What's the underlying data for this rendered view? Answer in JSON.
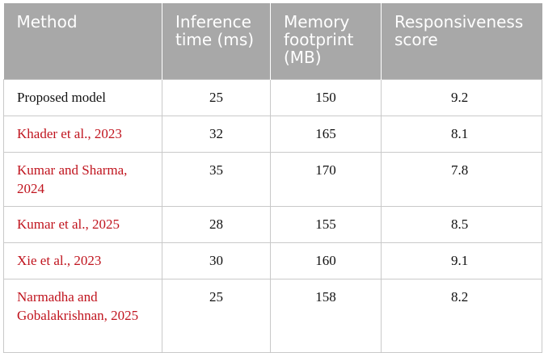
{
  "table": {
    "headers": [
      "Method",
      "Inference time (ms)",
      "Memory footprint (MB)",
      "Responsiveness score"
    ],
    "rows": [
      {
        "method": "Proposed model",
        "inference_ms": "25",
        "memory_mb": "150",
        "score": "9.2",
        "is_reference": false
      },
      {
        "method": "Khader et al., 2023",
        "inference_ms": "32",
        "memory_mb": "165",
        "score": "8.1",
        "is_reference": true
      },
      {
        "method": "Kumar and Sharma, 2024",
        "inference_ms": "35",
        "memory_mb": "170",
        "score": "7.8",
        "is_reference": true
      },
      {
        "method": "Kumar et al., 2025",
        "inference_ms": "28",
        "memory_mb": "155",
        "score": "8.5",
        "is_reference": true
      },
      {
        "method": "Xie et al., 2023",
        "inference_ms": "30",
        "memory_mb": "160",
        "score": "9.1",
        "is_reference": true
      },
      {
        "method": "Narmadha and Gobalakrishnan, 2025",
        "inference_ms": "25",
        "memory_mb": "158",
        "score": "8.2",
        "is_reference": true
      }
    ]
  },
  "colors": {
    "header_bg": "#a8a8a8",
    "header_text": "#ffffff",
    "reference_link": "#c0141e",
    "body_text": "#111111",
    "grid": "#c9c9c9"
  }
}
